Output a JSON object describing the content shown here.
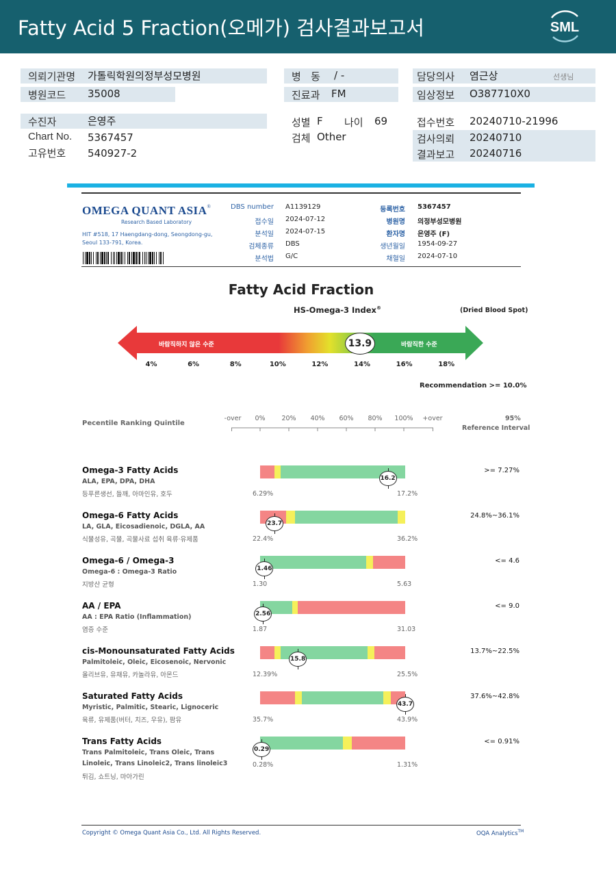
{
  "header": {
    "title": "Fatty Acid 5 Fraction(오메가) 검사결과보고서",
    "logo_text": "SML"
  },
  "patient": {
    "institution_label": "의뢰기관명",
    "institution": "가톨릭학원의정부성모병원",
    "hospital_code_label": "병원코드",
    "hospital_code": "35008",
    "ward_label": "병   동",
    "ward": "/ -",
    "dept_label": "진료과",
    "dept": "FM",
    "doctor_label": "담당의사",
    "doctor": "염근상",
    "doctor_suffix": "선생님",
    "clinical_label": "임상정보",
    "clinical": "O387710X0",
    "name_label": "수진자",
    "name": "은영주",
    "chart_label": "Chart No.",
    "chart": "5367457",
    "uid_label": "고유번호",
    "uid": "540927-2",
    "sex_label": "성별",
    "sex": "F",
    "age_label": "나이",
    "age": "69",
    "specimen_label": "검체",
    "specimen": "Other",
    "receipt_label": "접수번호",
    "receipt": "20240710-21996",
    "request_label": "검사의뢰",
    "request": "20240710",
    "report_label": "결과보고",
    "report": "20240716"
  },
  "lab": {
    "logo_main": "OMEGA QUANT ASIA",
    "logo_reg": "®",
    "logo_sub": "Research Based Laboratory",
    "address1": "HIT #518, 17 Haengdang-dong, Seongdong-gu,",
    "address2": "Seoul 133-791, Korea.",
    "dbs_label": "DBS number",
    "dbs": "A1139129",
    "recv_label": "접수일",
    "recv": "2024-07-12",
    "anal_label": "분석일",
    "anal": "2024-07-15",
    "spec_label": "검체종류",
    "spec": "DBS",
    "method_label": "분석법",
    "method": "G/C",
    "regno_label": "등록번호",
    "regno": "5367457",
    "hosp_label": "병원명",
    "hosp": "의정부성모병원",
    "pt_label": "환자명",
    "pt": "은영주 (F)",
    "dob_label": "생년월일",
    "dob": "1954-09-27",
    "coll_label": "채혈일",
    "coll": "2024-07-10"
  },
  "index": {
    "title": "Fatty Acid Fraction",
    "subtitle": "HS-Omega-3 Index",
    "subtitle_mark": "®",
    "note": "(Dried Blood Spot)",
    "value": "13.9",
    "value_num": 13.9,
    "left_label": "바람직하지 않은 수준",
    "right_label": "바람직한 수준",
    "ticks": [
      "4%",
      "6%",
      "8%",
      "10%",
      "12%",
      "14%",
      "16%",
      "18%"
    ],
    "recommendation": "Recommendation  >= 10.0%",
    "colors": {
      "red": "#e8393a",
      "green": "#3aa856",
      "yellow": "#e3e12b"
    }
  },
  "percentile": {
    "label": "Pecentile Ranking Quintile",
    "scale": [
      "-over",
      "0%",
      "20%",
      "40%",
      "60%",
      "80%",
      "100%",
      "+over"
    ],
    "ref_label1": "95%",
    "ref_label2": "Reference Interval"
  },
  "fatty_acids": [
    {
      "name": "Omega-3 Fatty Acids",
      "sub1": "ALA, EPA, DPA, DHA",
      "sub2": "등푸른생선, 들깨, 아마인유, 호두",
      "ref": ">= 7.27%",
      "min": "6.29%",
      "max": "17.2%",
      "value": "16.2",
      "value_frac": 0.88,
      "segments": [
        [
          "red",
          0,
          0.1
        ],
        [
          "yellow",
          0.1,
          0.14
        ],
        [
          "green",
          0.14,
          1.0
        ]
      ]
    },
    {
      "name": "Omega-6 Fatty Acids",
      "sub1": "LA, GLA, Eicosadienoic, DGLA, AA",
      "sub2": "식물성유, 곡물, 곡물사료 섭취 육류·유제품",
      "ref": "24.8%~36.1%",
      "min": "22.4%",
      "max": "36.2%",
      "value": "23.7",
      "value_frac": 0.1,
      "segments": [
        [
          "red",
          0,
          0.18
        ],
        [
          "yellow",
          0.18,
          0.24
        ],
        [
          "green",
          0.24,
          0.95
        ],
        [
          "yellow",
          0.95,
          1.0
        ]
      ]
    },
    {
      "name": "Omega-6 / Omega-3",
      "sub1": "Omega-6 : Omega-3 Ratio",
      "sub2": "지방산 균형",
      "ref": "<= 4.6",
      "min": "1.30",
      "max": "5.63",
      "value": "1.46",
      "value_frac": 0.03,
      "segments": [
        [
          "green",
          0,
          0.73
        ],
        [
          "yellow",
          0.73,
          0.78
        ],
        [
          "red",
          0.78,
          1.0
        ]
      ]
    },
    {
      "name": "AA / EPA",
      "sub1": "AA : EPA Ratio (Inflammation)",
      "sub2": "염증 수준",
      "ref": "<= 9.0",
      "min": "1.87",
      "max": "31.03",
      "value": "2.56",
      "value_frac": 0.02,
      "segments": [
        [
          "green",
          0,
          0.22
        ],
        [
          "yellow",
          0.22,
          0.26
        ],
        [
          "red",
          0.26,
          1.0
        ]
      ]
    },
    {
      "name": "cis-Monounsaturated Fatty Acids",
      "sub1": "Palmitoleic, Oleic, Eicosenoic, Nervonic",
      "sub2": "올리브유, 유채유, 카놀라유, 아몬드",
      "ref": "13.7%~22.5%",
      "min": "12.39%",
      "max": "25.5%",
      "value": "15.8",
      "value_frac": 0.26,
      "segments": [
        [
          "red",
          0,
          0.1
        ],
        [
          "yellow",
          0.1,
          0.14
        ],
        [
          "green",
          0.14,
          0.74
        ],
        [
          "yellow",
          0.74,
          0.79
        ],
        [
          "red",
          0.79,
          1.0
        ]
      ]
    },
    {
      "name": "Saturated Fatty Acids",
      "sub1": "Myristic, Palmitic, Stearic, Lignoceric",
      "sub2": "육류, 유제품(버터, 치즈, 우유), 팜유",
      "ref": "37.6%~42.8%",
      "min": "35.7%",
      "max": "43.9%",
      "value": "43.7",
      "value_frac": 1.0,
      "segments": [
        [
          "red",
          0,
          0.24
        ],
        [
          "yellow",
          0.24,
          0.29
        ],
        [
          "green",
          0.29,
          0.85
        ],
        [
          "yellow",
          0.85,
          0.9
        ],
        [
          "red",
          0.9,
          1.0
        ]
      ]
    },
    {
      "name": "Trans Fatty Acids",
      "sub1": "Trans Palmitoleic, Trans Oleic, Trans",
      "sub1b": "Linoleic, Trans Linoleic2, Trans linoleic3",
      "sub2": "튀김, 쇼트닝, 마아가린",
      "ref": "<= 0.91%",
      "min": "0.28%",
      "max": "1.31%",
      "value": "0.29",
      "value_frac": 0.01,
      "segments": [
        [
          "green",
          0,
          0.57
        ],
        [
          "yellow",
          0.57,
          0.63
        ],
        [
          "red",
          0.63,
          1.0
        ]
      ]
    }
  ],
  "bar_colors": {
    "red": "#f48585",
    "yellow": "#f5f05a",
    "green": "#84d6a0"
  },
  "footer": {
    "copyright": "Copyright © Omega Quant Asia Co., Ltd.  All Rights Reserved.",
    "analytics": "OQA Analytics",
    "analytics_tm": "TM"
  }
}
